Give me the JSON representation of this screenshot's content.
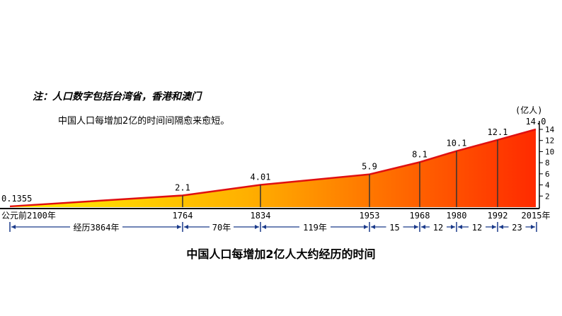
{
  "note": "注：人口数字包括台湾省，香港和澳门",
  "subtitle": "中国人口每增加2亿的时间间隔愈来愈短。",
  "caption": "中国人口每增加2亿人大约经历的时间",
  "chart_data": {
    "type": "area",
    "title": "中国人口每增加2亿人大约经历的时间",
    "ylabel": "(亿人)",
    "ylim": [
      0,
      14
    ],
    "yticks": [
      2,
      4,
      6,
      8,
      10,
      12,
      14
    ],
    "points": [
      {
        "year_label": "公元前2100年",
        "value": 0.1355,
        "value_label": "0.1355"
      },
      {
        "year_label": "1764",
        "value": 2.1,
        "value_label": "2.1"
      },
      {
        "year_label": "1834",
        "value": 4.01,
        "value_label": "4.01"
      },
      {
        "year_label": "1953",
        "value": 5.9,
        "value_label": "5.9"
      },
      {
        "year_label": "1968",
        "value": 8.1,
        "value_label": "8.1"
      },
      {
        "year_label": "1980",
        "value": 10.1,
        "value_label": "10.1"
      },
      {
        "year_label": "1992",
        "value": 12.1,
        "value_label": "12.1"
      },
      {
        "year_label": "2015年",
        "value": 14.0,
        "value_label": "14.0"
      }
    ],
    "intervals": [
      "经历3864年",
      "70年",
      "119年",
      "15",
      "12",
      "12",
      "23"
    ],
    "colors": {
      "fill_start": "#fff200",
      "fill_mid": "#ffb000",
      "fill_end": "#ff2a00",
      "outline": "#e01010",
      "dividers": "#333333"
    }
  }
}
